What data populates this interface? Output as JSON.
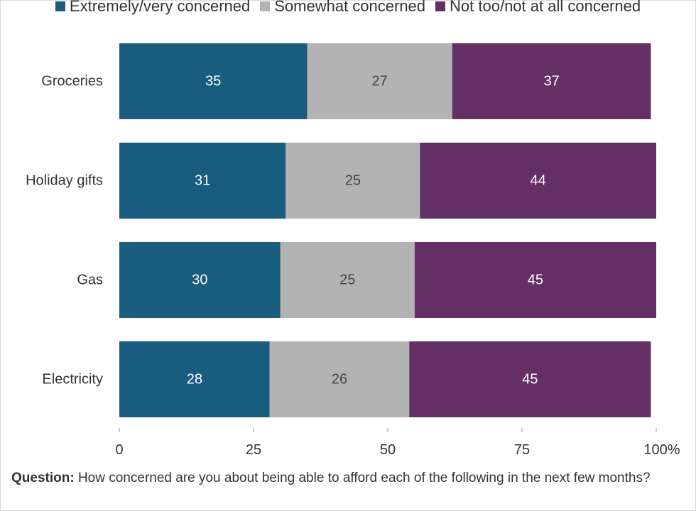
{
  "chart_data": {
    "type": "bar",
    "orientation": "horizontal",
    "stacked": true,
    "categories": [
      "Groceries",
      "Holiday gifts",
      "Gas",
      "Electricity"
    ],
    "series": [
      {
        "name": "Extremely/very concerned",
        "values": [
          35,
          31,
          30,
          28
        ],
        "color": "#1a5c7e"
      },
      {
        "name": "Somewhat concerned",
        "values": [
          27,
          25,
          25,
          26
        ],
        "color": "#b3b3b3"
      },
      {
        "name": "Not too/not at all concerned",
        "values": [
          37,
          44,
          45,
          45
        ],
        "color": "#642f64"
      }
    ],
    "xlim": [
      0,
      100
    ],
    "xticks": [
      "0",
      "25",
      "50",
      "75",
      "100%"
    ],
    "legend_position": "top",
    "grid": false
  },
  "footnote": {
    "label": "Question:",
    "text": "How concerned are you about being able to afford each of the following in the next few months?"
  }
}
